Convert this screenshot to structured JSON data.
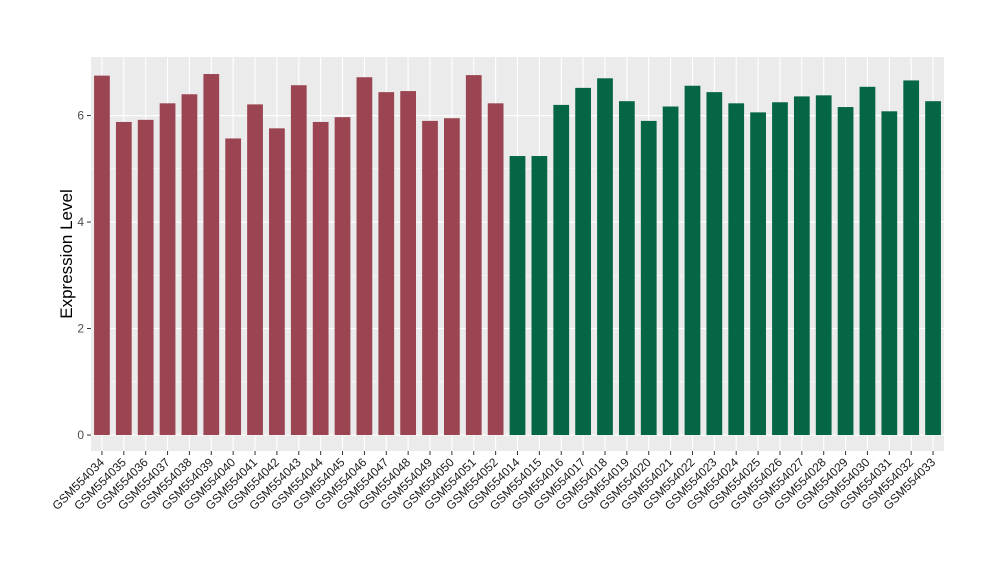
{
  "chart_data": {
    "type": "bar",
    "title": "",
    "xlabel": "",
    "ylabel": "Expression Level",
    "ylim": [
      -0.3,
      7.1
    ],
    "yticks": [
      0,
      2,
      4,
      6
    ],
    "grid": true,
    "legend": "none",
    "colors": {
      "panel_background": "#ebebeb",
      "grid": "#ffffff",
      "group_a": "#9b4452",
      "group_b": "#056645"
    },
    "categories": [
      "GSM554034",
      "GSM554035",
      "GSM554036",
      "GSM554037",
      "GSM554038",
      "GSM554039",
      "GSM554040",
      "GSM554041",
      "GSM554042",
      "GSM554043",
      "GSM554044",
      "GSM554045",
      "GSM554046",
      "GSM554047",
      "GSM554048",
      "GSM554049",
      "GSM554050",
      "GSM554051",
      "GSM554052",
      "GSM554014",
      "GSM554015",
      "GSM554016",
      "GSM554017",
      "GSM554018",
      "GSM554019",
      "GSM554020",
      "GSM554021",
      "GSM554022",
      "GSM554023",
      "GSM554024",
      "GSM554025",
      "GSM554026",
      "GSM554027",
      "GSM554028",
      "GSM554029",
      "GSM554030",
      "GSM554031",
      "GSM554032",
      "GSM554033"
    ],
    "values": [
      6.75,
      5.88,
      5.92,
      6.23,
      6.4,
      6.78,
      5.57,
      6.21,
      5.76,
      6.57,
      5.88,
      5.97,
      6.72,
      6.44,
      6.46,
      5.9,
      5.95,
      6.76,
      6.23,
      5.24,
      5.24,
      6.2,
      6.52,
      6.7,
      6.27,
      5.9,
      6.17,
      6.56,
      6.44,
      6.23,
      6.06,
      6.25,
      6.36,
      6.38,
      6.16,
      6.54,
      6.08,
      6.66,
      6.27
    ],
    "groups": [
      "a",
      "a",
      "a",
      "a",
      "a",
      "a",
      "a",
      "a",
      "a",
      "a",
      "a",
      "a",
      "a",
      "a",
      "a",
      "a",
      "a",
      "a",
      "a",
      "b",
      "b",
      "b",
      "b",
      "b",
      "b",
      "b",
      "b",
      "b",
      "b",
      "b",
      "b",
      "b",
      "b",
      "b",
      "b",
      "b",
      "b",
      "b",
      "b"
    ]
  }
}
